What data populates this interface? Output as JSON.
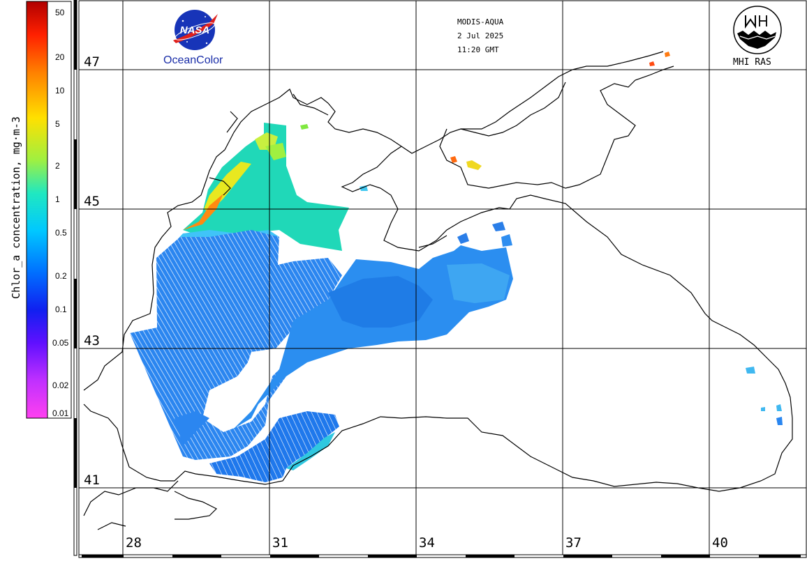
{
  "title_block": {
    "sensor": "MODIS-AQUA",
    "date": "2 Jul 2025",
    "time": "11:20 GMT"
  },
  "logos": {
    "nasa_text": "NASA",
    "oceancolor_text": "OceanColor",
    "mhi_text": "MHI RAS"
  },
  "colorbar": {
    "label": "Chlor_a concentration, mg·m-3",
    "ticks": [
      "50",
      "20",
      "10",
      "5",
      "2",
      "1",
      "0.5",
      "0.2",
      "0.1",
      "0.05",
      "0.02",
      "0.01"
    ],
    "colors": [
      "#c80000",
      "#ff3000",
      "#ff8a00",
      "#ffd400",
      "#c8f020",
      "#40e0a0",
      "#00e8f0",
      "#00a0ff",
      "#1a40ff",
      "#2000e0",
      "#8020ff",
      "#e040ff",
      "#ff40f0"
    ]
  },
  "grid": {
    "latitudes": [
      "47",
      "45",
      "43",
      "41"
    ],
    "longitudes": [
      "28",
      "31",
      "34",
      "37",
      "40"
    ]
  },
  "icons": {
    "nasa_logo": "nasa-meatball-icon",
    "mhi_logo": "mhi-ras-emblem-icon"
  }
}
